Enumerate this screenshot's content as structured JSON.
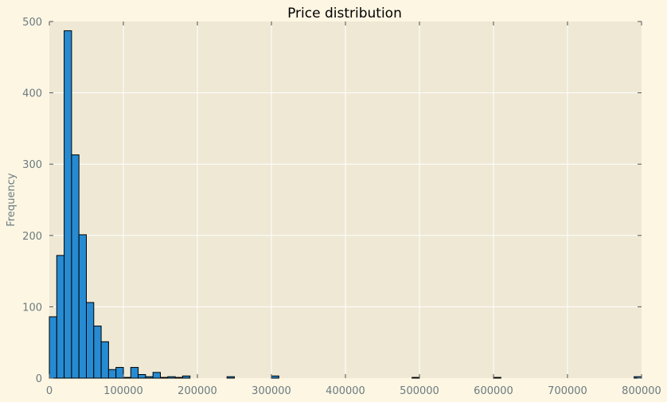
{
  "chart_data": {
    "type": "bar",
    "title": "Price distribution",
    "xlabel": "",
    "ylabel": "Frequency",
    "xlim": [
      0,
      800000
    ],
    "ylim": [
      0,
      500
    ],
    "xticks": [
      0,
      100000,
      200000,
      300000,
      400000,
      500000,
      600000,
      700000,
      800000
    ],
    "xtick_labels": [
      "0",
      "100000",
      "200000",
      "300000",
      "400000",
      "500000",
      "600000",
      "700000",
      "800000"
    ],
    "yticks": [
      0,
      100,
      200,
      300,
      400,
      500
    ],
    "ytick_labels": [
      "0",
      "100",
      "200",
      "300",
      "400",
      "500"
    ],
    "grid": true,
    "bin_width": 10000,
    "bins": [
      {
        "x0": 0,
        "x1": 10000,
        "count": 86
      },
      {
        "x0": 10000,
        "x1": 20000,
        "count": 172
      },
      {
        "x0": 20000,
        "x1": 30000,
        "count": 487
      },
      {
        "x0": 30000,
        "x1": 40000,
        "count": 313
      },
      {
        "x0": 40000,
        "x1": 50000,
        "count": 201
      },
      {
        "x0": 50000,
        "x1": 60000,
        "count": 106
      },
      {
        "x0": 60000,
        "x1": 70000,
        "count": 73
      },
      {
        "x0": 70000,
        "x1": 80000,
        "count": 51
      },
      {
        "x0": 80000,
        "x1": 90000,
        "count": 12
      },
      {
        "x0": 90000,
        "x1": 100000,
        "count": 15
      },
      {
        "x0": 100000,
        "x1": 110000,
        "count": 1
      },
      {
        "x0": 110000,
        "x1": 120000,
        "count": 15
      },
      {
        "x0": 120000,
        "x1": 130000,
        "count": 5
      },
      {
        "x0": 130000,
        "x1": 140000,
        "count": 2
      },
      {
        "x0": 140000,
        "x1": 150000,
        "count": 8
      },
      {
        "x0": 150000,
        "x1": 160000,
        "count": 1
      },
      {
        "x0": 160000,
        "x1": 170000,
        "count": 2
      },
      {
        "x0": 170000,
        "x1": 180000,
        "count": 1
      },
      {
        "x0": 180000,
        "x1": 190000,
        "count": 3
      },
      {
        "x0": 240000,
        "x1": 250000,
        "count": 2
      },
      {
        "x0": 300000,
        "x1": 310000,
        "count": 3
      },
      {
        "x0": 490000,
        "x1": 500000,
        "count": 1
      },
      {
        "x0": 600000,
        "x1": 610000,
        "count": 1
      },
      {
        "x0": 790000,
        "x1": 800000,
        "count": 2
      }
    ],
    "colors": {
      "figure_background": "#fdf6e3",
      "axes_background": "#eee8d5",
      "bar_fill": "#268bd2",
      "bar_edge": "#000000",
      "grid": "#ffffff",
      "tick_label": "#6b7b80"
    }
  }
}
